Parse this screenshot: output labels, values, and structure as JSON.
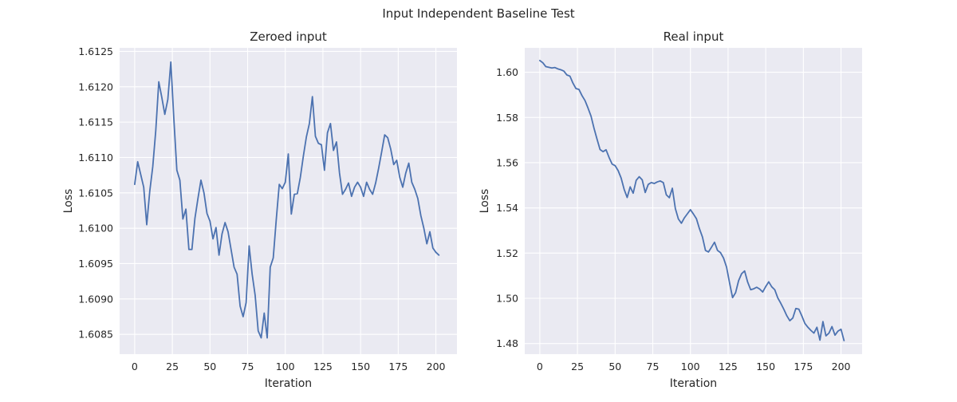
{
  "figure": {
    "suptitle": "Input Independent Baseline Test",
    "background": "#ffffff",
    "plot_background": "#eaeaf2",
    "grid_color": "#ffffff",
    "line_color": "#4c72b0"
  },
  "chart_data": [
    {
      "type": "line",
      "title": "Zeroed input",
      "xlabel": "Iteration",
      "ylabel": "Loss",
      "grid": true,
      "xlim": [
        -10,
        214
      ],
      "ylim": [
        1.60822,
        1.61255
      ],
      "xticks": [
        0,
        25,
        50,
        75,
        100,
        125,
        150,
        175,
        200
      ],
      "xtick_labels": [
        "0",
        "25",
        "50",
        "75",
        "100",
        "125",
        "150",
        "175",
        "200"
      ],
      "yticks": [
        1.6085,
        1.609,
        1.6095,
        1.61,
        1.6105,
        1.611,
        1.6115,
        1.612,
        1.6125
      ],
      "ytick_labels": [
        "1.6085",
        "1.6090",
        "1.6095",
        "1.6100",
        "1.6105",
        "1.6110",
        "1.6115",
        "1.6120",
        "1.6125"
      ],
      "series": [
        {
          "x": [
            0,
            2,
            4,
            6,
            8,
            10,
            12,
            14,
            16,
            18,
            20,
            22,
            24,
            26,
            28,
            30,
            32,
            34,
            36,
            38,
            40,
            42,
            44,
            46,
            48,
            50,
            52,
            54,
            56,
            58,
            60,
            62,
            64,
            66,
            68,
            70,
            72,
            74,
            76,
            78,
            80,
            82,
            84,
            86,
            88,
            90,
            92,
            94,
            96,
            98,
            100,
            102,
            104,
            106,
            108,
            110,
            112,
            114,
            116,
            118,
            120,
            122,
            124,
            126,
            128,
            130,
            132,
            134,
            136,
            138,
            140,
            142,
            144,
            146,
            148,
            150,
            152,
            154,
            156,
            158,
            160,
            162,
            164,
            166,
            168,
            170,
            172,
            174,
            176,
            178,
            180,
            182,
            184,
            186,
            188,
            190,
            192,
            194,
            196,
            198,
            200,
            202
          ],
          "values": [
            1.61062,
            1.61094,
            1.61076,
            1.61058,
            1.61005,
            1.61052,
            1.61087,
            1.61138,
            1.61207,
            1.61185,
            1.61161,
            1.61182,
            1.61235,
            1.61155,
            1.61082,
            1.61068,
            1.61013,
            1.61027,
            1.6097,
            1.6097,
            1.61014,
            1.61042,
            1.61068,
            1.6105,
            1.61021,
            1.6101,
            1.60985,
            1.61001,
            1.60962,
            1.60992,
            1.61008,
            1.60995,
            1.6097,
            1.60945,
            1.60935,
            1.6089,
            1.60875,
            1.60895,
            1.60975,
            1.60935,
            1.60905,
            1.60855,
            1.60845,
            1.6088,
            1.60845,
            1.60945,
            1.60958,
            1.61012,
            1.61062,
            1.61056,
            1.61065,
            1.61105,
            1.6102,
            1.61048,
            1.61049,
            1.61072,
            1.61102,
            1.61129,
            1.61148,
            1.61186,
            1.6113,
            1.6112,
            1.61118,
            1.61082,
            1.61135,
            1.61148,
            1.6111,
            1.61122,
            1.61078,
            1.61048,
            1.61055,
            1.61064,
            1.61045,
            1.61058,
            1.61065,
            1.61058,
            1.61045,
            1.61065,
            1.61055,
            1.61048,
            1.61064,
            1.61085,
            1.61108,
            1.61132,
            1.61128,
            1.61112,
            1.6109,
            1.61096,
            1.61072,
            1.61058,
            1.61078,
            1.61092,
            1.61065,
            1.61055,
            1.61042,
            1.61018,
            1.61,
            1.60978,
            1.60995,
            1.60972,
            1.60966,
            1.60962
          ]
        }
      ]
    },
    {
      "type": "line",
      "title": "Real input",
      "xlabel": "Iteration",
      "ylabel": "Loss",
      "grid": true,
      "xlim": [
        -10,
        214
      ],
      "ylim": [
        1.4753,
        1.6108
      ],
      "xticks": [
        0,
        25,
        50,
        75,
        100,
        125,
        150,
        175,
        200
      ],
      "xtick_labels": [
        "0",
        "25",
        "50",
        "75",
        "100",
        "125",
        "150",
        "175",
        "200"
      ],
      "yticks": [
        1.48,
        1.5,
        1.52,
        1.54,
        1.56,
        1.58,
        1.6
      ],
      "ytick_labels": [
        "1.48",
        "1.50",
        "1.52",
        "1.54",
        "1.56",
        "1.58",
        "1.60"
      ],
      "series": [
        {
          "x": [
            0,
            2,
            4,
            6,
            8,
            10,
            12,
            14,
            16,
            18,
            20,
            22,
            24,
            26,
            28,
            30,
            32,
            34,
            36,
            38,
            40,
            42,
            44,
            46,
            48,
            50,
            52,
            54,
            56,
            58,
            60,
            62,
            64,
            66,
            68,
            70,
            72,
            74,
            76,
            78,
            80,
            82,
            84,
            86,
            88,
            90,
            92,
            94,
            96,
            98,
            100,
            102,
            104,
            106,
            108,
            110,
            112,
            114,
            116,
            118,
            120,
            122,
            124,
            126,
            128,
            130,
            132,
            134,
            136,
            138,
            140,
            142,
            144,
            146,
            148,
            150,
            152,
            154,
            156,
            158,
            160,
            162,
            164,
            166,
            168,
            170,
            172,
            174,
            176,
            178,
            180,
            182,
            184,
            186,
            188,
            190,
            192,
            194,
            196,
            198,
            200,
            202
          ],
          "values": [
            1.6052,
            1.6042,
            1.6025,
            1.6022,
            1.6019,
            1.6021,
            1.6015,
            1.6011,
            1.6005,
            1.5988,
            1.5983,
            1.5952,
            1.5928,
            1.5924,
            1.5897,
            1.5875,
            1.5842,
            1.5806,
            1.5752,
            1.5704,
            1.5658,
            1.5649,
            1.5657,
            1.5623,
            1.5594,
            1.5587,
            1.5565,
            1.5532,
            1.5482,
            1.5446,
            1.5493,
            1.5465,
            1.5522,
            1.5538,
            1.5524,
            1.5468,
            1.5504,
            1.5512,
            1.5508,
            1.5515,
            1.5519,
            1.5512,
            1.5458,
            1.5445,
            1.5487,
            1.5397,
            1.5351,
            1.5332,
            1.5356,
            1.5374,
            1.5392,
            1.5373,
            1.5352,
            1.5308,
            1.5271,
            1.5212,
            1.5205,
            1.5226,
            1.5248,
            1.5212,
            1.5202,
            1.5178,
            1.5138,
            1.5068,
            1.5003,
            1.5025,
            1.5078,
            1.5109,
            1.5121,
            1.5072,
            1.5038,
            1.5042,
            1.5049,
            1.5041,
            1.5028,
            1.5052,
            1.5073,
            1.5051,
            1.5038,
            1.5002,
            1.4978,
            1.4952,
            1.4923,
            1.4901,
            1.4913,
            1.4955,
            1.4952,
            1.4922,
            1.4889,
            1.4872,
            1.4858,
            1.4846,
            1.4872,
            1.4815,
            1.4897,
            1.4834,
            1.4846,
            1.4875,
            1.4837,
            1.4855,
            1.4863,
            1.4813
          ]
        }
      ]
    }
  ]
}
